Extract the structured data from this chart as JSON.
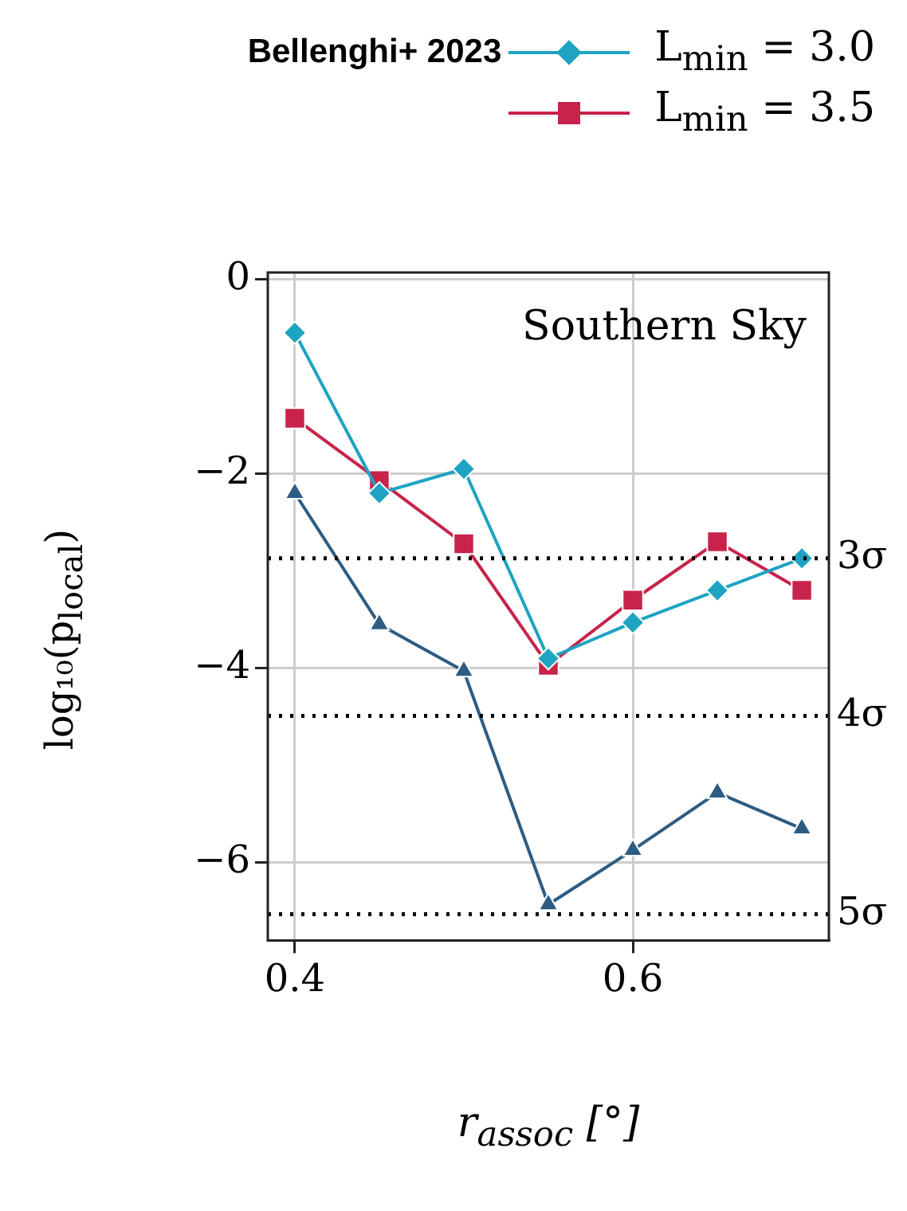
{
  "chart_data": {
    "type": "line",
    "xlabel": "r$_{assoc}$ [°]",
    "ylabel": "log₁₀(p$_{local}$)",
    "legend_title": "Bellenghi+ 2023",
    "legend": "top right",
    "grid": true,
    "annotations": [
      "Southern Sky"
    ],
    "x": [
      0.4,
      0.45,
      0.5,
      0.55,
      0.6,
      0.65,
      0.7
    ],
    "xlim": [
      0.384,
      0.716
    ],
    "xticks": [
      0.4,
      0.6
    ],
    "ylim": [
      -6.8,
      0.07
    ],
    "yticks": [
      {
        "value": -6,
        "label": "−6"
      },
      {
        "value": -4,
        "label": "−4"
      },
      {
        "value": -2,
        "label": "−2"
      },
      0
    ],
    "series": [
      {
        "name": "L$_{min}$ = 3.0",
        "color": "#1fa3c2",
        "marker": "diamond",
        "values": [
          -0.55,
          -2.2,
          -1.95,
          -3.9,
          -3.53,
          -3.2,
          -2.87
        ]
      },
      {
        "name": "L$_{min}$ = 3.5",
        "color": "#c8234a",
        "marker": "square",
        "values": [
          -1.43,
          -2.07,
          -2.72,
          -3.97,
          -3.3,
          -2.7,
          -3.2
        ]
      },
      {
        "color": "#2d5c82",
        "marker": "triangle",
        "values": [
          -2.2,
          -3.55,
          -4.03,
          -6.43,
          -5.87,
          -5.28,
          -5.65
        ]
      }
    ],
    "ref_lines": [
      {
        "axis": "y",
        "value": -2.87,
        "label": "3σ",
        "color": "#000000",
        "line_style": "dotted"
      },
      {
        "axis": "y",
        "value": -4.49,
        "label": "4σ",
        "color": "#000000",
        "line_style": "dotted"
      },
      {
        "axis": "y",
        "value": -6.53,
        "label": "5σ",
        "color": "#000000",
        "line_style": "dotted"
      }
    ]
  }
}
